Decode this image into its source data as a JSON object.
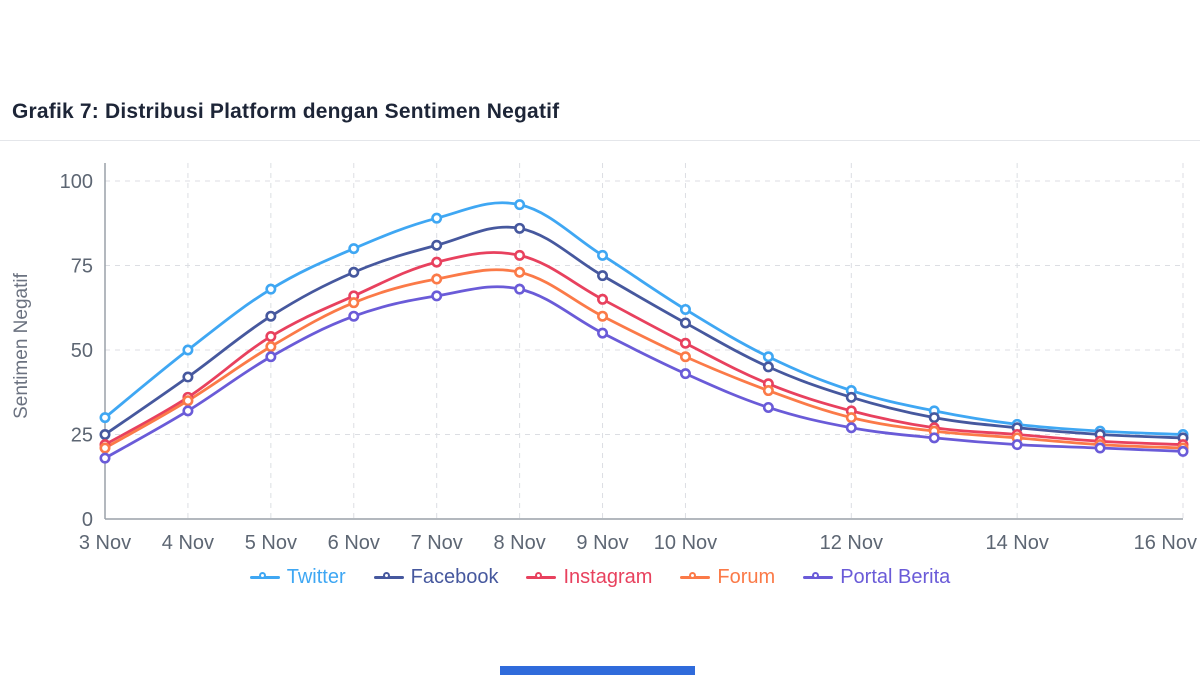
{
  "chart_data": {
    "type": "line",
    "title": "Grafik 7: Distribusi Platform dengan Sentimen Negatif",
    "ylabel": "Sentimen Negatif",
    "xlabel": "",
    "ylim": [
      0,
      100
    ],
    "yticks": [
      0,
      25,
      50,
      75,
      100
    ],
    "categories": [
      "3 Nov",
      "4 Nov",
      "5 Nov",
      "6 Nov",
      "7 Nov",
      "8 Nov",
      "9 Nov",
      "10 Nov",
      "11 Nov",
      "12 Nov",
      "13 Nov",
      "14 Nov",
      "15 Nov",
      "16 Nov"
    ],
    "xtick_labels_shown": [
      "3 Nov",
      "4 Nov",
      "5 Nov",
      "6 Nov",
      "7 Nov",
      "8 Nov",
      "9 Nov",
      "10 Nov",
      "12 Nov",
      "14 Nov",
      "16 Nov"
    ],
    "grid": true,
    "grid_style": "dashed",
    "legend_position": "bottom",
    "series": [
      {
        "name": "Twitter",
        "color": "#3fa7f3",
        "values": [
          30,
          50,
          68,
          80,
          89,
          93,
          78,
          62,
          48,
          38,
          32,
          28,
          26,
          25
        ]
      },
      {
        "name": "Facebook",
        "color": "#46589e",
        "values": [
          25,
          42,
          60,
          73,
          81,
          86,
          72,
          58,
          45,
          36,
          30,
          27,
          25,
          24
        ]
      },
      {
        "name": "Instagram",
        "color": "#e8415e",
        "values": [
          22,
          36,
          54,
          66,
          76,
          78,
          65,
          52,
          40,
          32,
          27,
          25,
          23,
          22
        ]
      },
      {
        "name": "Forum",
        "color": "#fb7a48",
        "values": [
          21,
          35,
          51,
          64,
          71,
          73,
          60,
          48,
          38,
          30,
          26,
          24,
          22,
          21
        ]
      },
      {
        "name": "Portal Berita",
        "color": "#6a5bd8",
        "values": [
          18,
          32,
          48,
          60,
          66,
          68,
          55,
          43,
          33,
          27,
          24,
          22,
          21,
          20
        ]
      }
    ]
  },
  "decor": {
    "accent_bar_color": "#2f6bdb",
    "axis_color": "#9aa0a8",
    "gridline_color": "#dcdee3",
    "tick_label_color": "#5d6673"
  }
}
